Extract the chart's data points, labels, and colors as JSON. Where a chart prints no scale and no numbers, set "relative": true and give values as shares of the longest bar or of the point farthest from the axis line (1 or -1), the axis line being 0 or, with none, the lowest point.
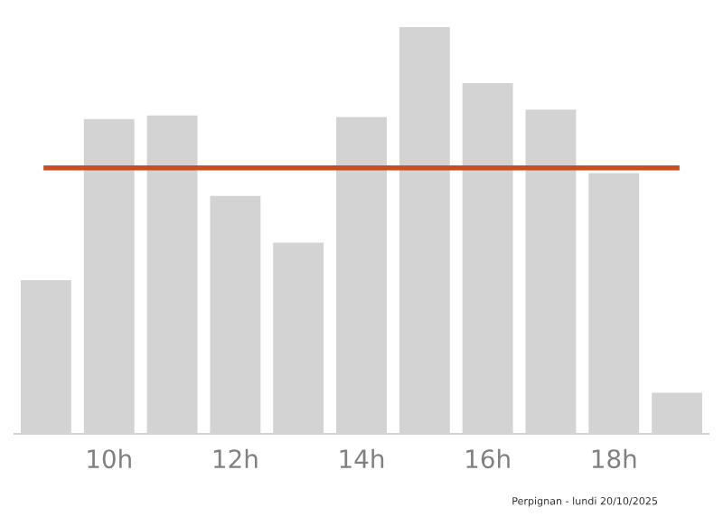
{
  "chart_data": {
    "type": "bar",
    "relative": true,
    "categories": [
      null,
      "10h",
      null,
      "12h",
      null,
      "14h",
      null,
      "16h",
      null,
      "18h",
      null
    ],
    "series": [
      {
        "color": "#d3d3d3",
        "values": [
          0.378,
          0.774,
          0.783,
          0.585,
          0.47,
          0.779,
          1,
          0.862,
          0.797,
          0.641,
          0.101
        ]
      },
      {
        "type": "line",
        "color": "#c8501e",
        "values": [
          0.654,
          0.654,
          0.654,
          0.654,
          0.654,
          0.654,
          0.654,
          0.654,
          0.654,
          0.654,
          0.654
        ]
      }
    ],
    "annotations": [
      "Perpignan - lundi 20/10/2025"
    ]
  }
}
